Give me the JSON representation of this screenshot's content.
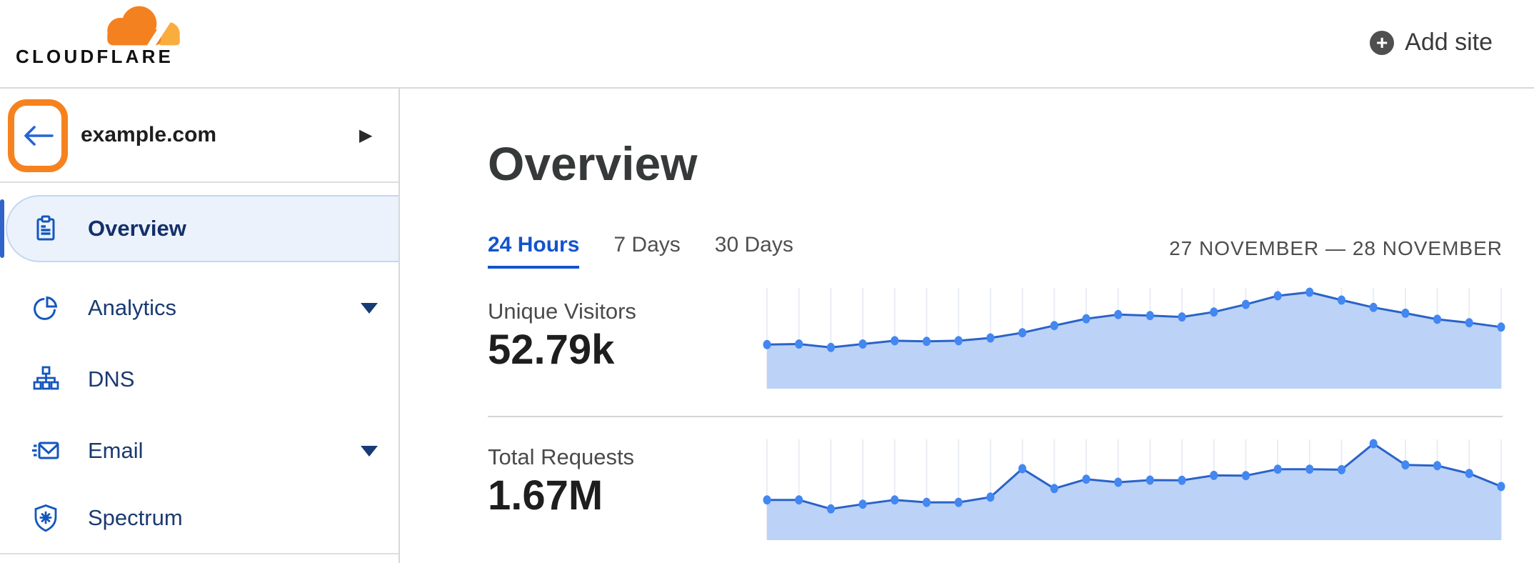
{
  "brand": {
    "name": "CLOUDFLARE",
    "logo_orange": "#F48120",
    "logo_light_orange": "#FAAD3F"
  },
  "header": {
    "add_site_label": "Add site",
    "plus_glyph": "+"
  },
  "sidebar": {
    "site_name": "example.com",
    "back_icon": "left-arrow",
    "expand_chevron": "▶",
    "items": [
      {
        "label": "Overview",
        "icon": "clipboard-icon",
        "selected": true,
        "expandable": false
      },
      {
        "label": "Analytics",
        "icon": "pie-chart-icon",
        "selected": false,
        "expandable": true
      },
      {
        "label": "DNS",
        "icon": "network-tree-icon",
        "selected": false,
        "expandable": false
      },
      {
        "label": "Email",
        "icon": "envelope-icon",
        "selected": false,
        "expandable": true
      },
      {
        "label": "Spectrum",
        "icon": "shield-icon",
        "selected": false,
        "expandable": false
      }
    ]
  },
  "main": {
    "title": "Overview",
    "tabs": [
      {
        "label": "24 Hours",
        "active": true
      },
      {
        "label": "7 Days",
        "active": false
      },
      {
        "label": "30 Days",
        "active": false
      }
    ],
    "date_range": "27 NOVEMBER — 28 NOVEMBER",
    "metrics": [
      {
        "label": "Unique Visitors",
        "value": "52.79k"
      },
      {
        "label": "Total Requests",
        "value": "1.67M"
      }
    ]
  },
  "colors": {
    "accent_orange": "#F6821F",
    "link_blue": "#1254CE",
    "sidebar_icon_blue": "#1456BE",
    "sidebar_text_navy": "#1B3A70",
    "selected_pill_bg": "#EBF2FC",
    "selected_pill_border": "#C3D6F3",
    "chart": {
      "grid": "#E9EDF4",
      "fill": "#BCD3F7",
      "line": "#2A63C8",
      "dot": "#4287F2"
    }
  },
  "chart_data": [
    {
      "type": "area",
      "title": "Unique Visitors",
      "total_shown": "52.79k",
      "x_description": "24 hourly points spanning 27–28 November (axis labels not shown)",
      "ylabel": "",
      "legend": "none",
      "grid": "vertical gridline at each point",
      "values": [
        1480,
        1500,
        1385,
        1500,
        1610,
        1590,
        1610,
        1705,
        1880,
        2120,
        2350,
        2490,
        2455,
        2410,
        2575,
        2830,
        3120,
        3240,
        2975,
        2730,
        2535,
        2330,
        2215,
        2070
      ]
    },
    {
      "type": "area",
      "title": "Total Requests",
      "total_shown": "1.67M",
      "x_description": "24 hourly points spanning 27–28 November (axis labels not shown)",
      "ylabel": "",
      "legend": "none",
      "grid": "vertical gridline at each point",
      "values": [
        48800,
        48800,
        37900,
        43600,
        48800,
        45900,
        45900,
        52200,
        86700,
        62600,
        74000,
        70300,
        72900,
        72600,
        78600,
        78300,
        86100,
        86100,
        85500,
        117100,
        91300,
        90400,
        80900,
        65100
      ]
    }
  ]
}
